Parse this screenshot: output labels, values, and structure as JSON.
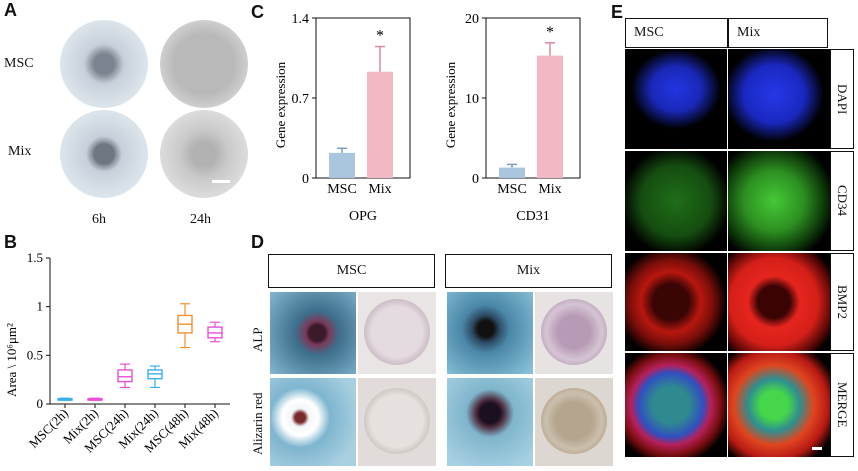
{
  "panel_a": {
    "label": "A",
    "rows": [
      "MSC",
      "Mix"
    ],
    "cols": [
      "6h",
      "24h"
    ]
  },
  "panel_b": {
    "label": "B",
    "ylabel": "Area \\ 10⁶μm²",
    "yticks": [
      "0",
      "0.5",
      "1",
      "1.5"
    ]
  },
  "panel_c": {
    "label": "C",
    "ylabel": "Gene expression"
  },
  "panel_d": {
    "label": "D",
    "groups": [
      "MSC",
      "Mix"
    ],
    "rows": [
      "ALP",
      "Alizarin red"
    ]
  },
  "panel_e": {
    "label": "E",
    "cols": [
      "MSC",
      "Mix"
    ],
    "rows": [
      "DAPI",
      "CD34",
      "BMP2",
      "MERGE"
    ]
  },
  "colors": {
    "msc_bar": "#a9c6de",
    "mix_bar": "#f2b9c4",
    "dapi": "#1a2ad6",
    "cd34": "#3fbf2f",
    "bmp2": "#e5251e"
  },
  "chart_data": [
    {
      "type": "box",
      "title": "",
      "ylabel": "Area \\ 10⁶μm²",
      "ylim": [
        0,
        1.5
      ],
      "categories": [
        "MSC(2h)",
        "Mix(2h)",
        "MSC(24h)",
        "Mix(24h)",
        "MSC(48h)",
        "Mix(48h)"
      ],
      "colors": [
        "#3ab0e8",
        "#e94fd6",
        "#e94fd6",
        "#3ab0e8",
        "#f0902f",
        "#e94fd6"
      ],
      "boxes": [
        {
          "min": 0.04,
          "q1": 0.045,
          "median": 0.05,
          "q3": 0.055,
          "max": 0.06
        },
        {
          "min": 0.04,
          "q1": 0.045,
          "median": 0.05,
          "q3": 0.055,
          "max": 0.06
        },
        {
          "min": 0.17,
          "q1": 0.23,
          "median": 0.28,
          "q3": 0.35,
          "max": 0.41
        },
        {
          "min": 0.17,
          "q1": 0.26,
          "median": 0.31,
          "q3": 0.35,
          "max": 0.39
        },
        {
          "min": 0.58,
          "q1": 0.73,
          "median": 0.82,
          "q3": 0.91,
          "max": 1.03
        },
        {
          "min": 0.64,
          "q1": 0.68,
          "median": 0.73,
          "q3": 0.79,
          "max": 0.84
        }
      ]
    },
    {
      "type": "bar",
      "title": "OPG",
      "ylabel": "Gene expression",
      "ylim": [
        0,
        1.4
      ],
      "yticks": [
        "0",
        "0.7",
        "1.4"
      ],
      "categories": [
        "MSC",
        "Mix"
      ],
      "values": [
        0.22,
        0.93
      ],
      "errors": [
        0.04,
        0.22
      ],
      "significance": [
        "",
        "*"
      ]
    },
    {
      "type": "bar",
      "title": "CD31",
      "ylabel": "Gene expression",
      "ylim": [
        0,
        20
      ],
      "yticks": [
        "0",
        "10",
        "20"
      ],
      "categories": [
        "MSC",
        "Mix"
      ],
      "values": [
        1.3,
        15.3
      ],
      "errors": [
        0.4,
        1.6
      ],
      "significance": [
        "",
        "*"
      ]
    }
  ]
}
